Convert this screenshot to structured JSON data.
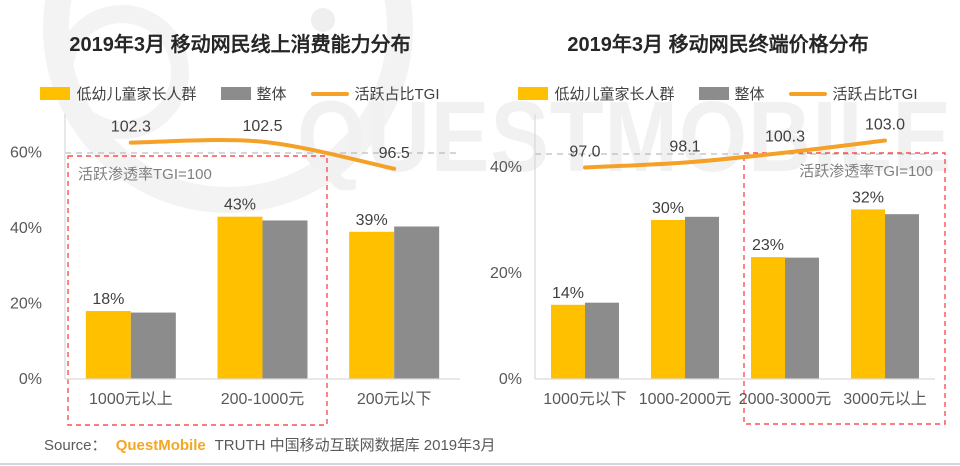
{
  "watermark": {
    "text": "QUESTMOBILE"
  },
  "colors": {
    "target_yellow": "#FFC000",
    "overall_gray": "#8C8C8C",
    "tgi_orange": "#F5A128",
    "highlight_red": "#FB5151",
    "ref_line_gray": "#ADADAD",
    "axis_gray": "#D9D9D9",
    "brand_orange": "#F5A623"
  },
  "source": {
    "prefix": "Source：",
    "brand": "QuestMobile",
    "suffix": "TRUTH 中国移动互联网数据库 2019年3月"
  },
  "chart_data": [
    {
      "type": "bar",
      "title": "2019年3月 移动网民线上消费能力分布",
      "categories": [
        "1000元以上",
        "200-1000元",
        "200元以下"
      ],
      "series": [
        {
          "name": "低幼儿童家长人群",
          "kind": "bar",
          "color": "#FFC000",
          "values": [
            18,
            43,
            39
          ],
          "data_labels": [
            "18%",
            "43%",
            "39%"
          ]
        },
        {
          "name": "整体",
          "kind": "bar",
          "color": "#8C8C8C",
          "values": [
            17.6,
            42.0,
            40.4
          ]
        },
        {
          "name": "活跃占比TGI",
          "kind": "line",
          "axis": "secondary",
          "color": "#F5A128",
          "values": [
            102.3,
            102.5,
            96.5
          ],
          "data_labels": [
            "102.3",
            "102.5",
            "96.5"
          ],
          "reference_value": 100
        }
      ],
      "yticks": [
        "0%",
        "20%",
        "40%",
        "60%"
      ],
      "ytick_values": [
        0,
        20,
        40,
        60
      ],
      "ylim": [
        0,
        70
      ],
      "grid": "dashed reference line at TGI=100 only",
      "legend_position": "top",
      "annotation": {
        "text": "活跃渗透率TGI=100",
        "box_categories": [
          "1000元以上",
          "200-1000元"
        ],
        "align": "left"
      }
    },
    {
      "type": "bar",
      "title": "2019年3月 移动网民终端价格分布",
      "categories": [
        "1000元以下",
        "1000-2000元",
        "2000-3000元",
        "3000元以上"
      ],
      "series": [
        {
          "name": "低幼儿童家长人群",
          "kind": "bar",
          "color": "#FFC000",
          "values": [
            14,
            30,
            23,
            32
          ],
          "data_labels": [
            "14%",
            "30%",
            "23%",
            "32%"
          ]
        },
        {
          "name": "整体",
          "kind": "bar",
          "color": "#8C8C8C",
          "values": [
            14.4,
            30.6,
            22.9,
            31.1
          ]
        },
        {
          "name": "活跃占比TGI",
          "kind": "line",
          "axis": "secondary",
          "color": "#F5A128",
          "values": [
            97.0,
            98.1,
            100.3,
            103.0
          ],
          "data_labels": [
            "97.0",
            "98.1",
            "100.3",
            "103.0"
          ],
          "reference_value": 100
        }
      ],
      "yticks": [
        "0%",
        "20%",
        "40%"
      ],
      "ytick_values": [
        0,
        20,
        40
      ],
      "ylim": [
        0,
        50
      ],
      "grid": "dashed reference line at TGI=100 only",
      "legend_position": "top",
      "annotation": {
        "text": "活跃渗透率TGI=100",
        "box_categories": [
          "2000-3000元",
          "3000元以上"
        ],
        "align": "right"
      }
    }
  ]
}
